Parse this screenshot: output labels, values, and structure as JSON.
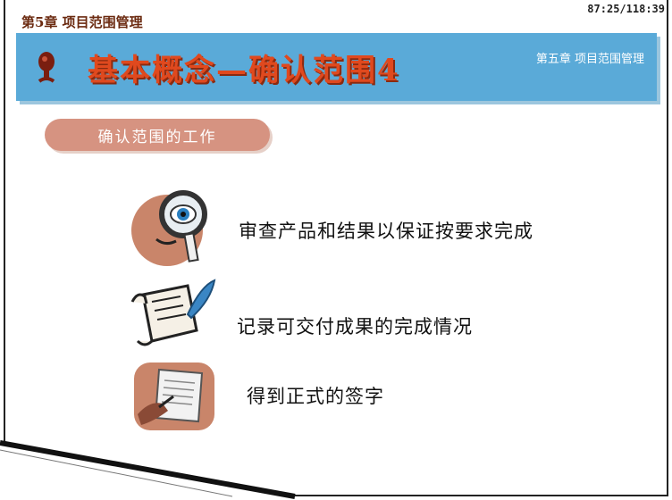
{
  "header": {
    "chapter_label": "第5章 项目范围管理",
    "page_counter": "87:25/118:39"
  },
  "title_bar": {
    "title": "基本概念—确认范围4",
    "subtitle": "第五章 项目范围管理"
  },
  "section": {
    "label": "确认范围的工作"
  },
  "items": [
    {
      "text": "审查产品和结果以保证按要求完成",
      "icon": "magnifier-eye-icon"
    },
    {
      "text": "记录可交付成果的完成情况",
      "icon": "scroll-quill-icon"
    },
    {
      "text": "得到正式的签字",
      "icon": "signing-document-icon"
    }
  ],
  "colors": {
    "title_bar": "#5aaad8",
    "title_text": "#e0491e",
    "section_pill": "#d69381"
  }
}
